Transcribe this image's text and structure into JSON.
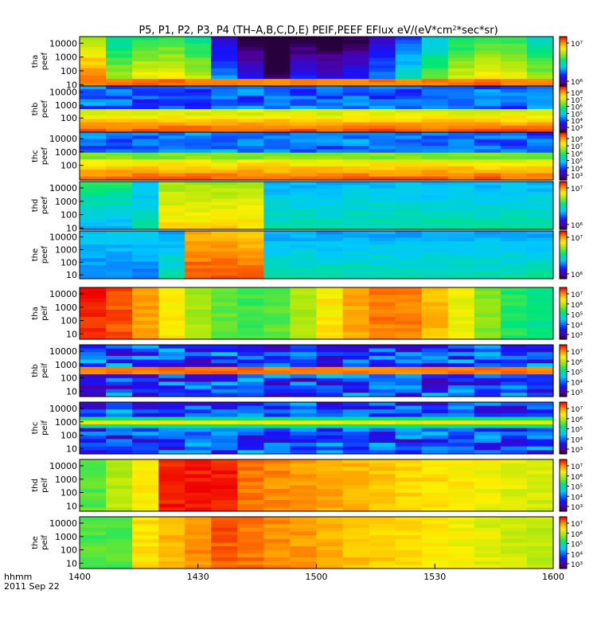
{
  "chart_data": {
    "type": "heatmap",
    "title_html": "P5, P1, P2, P3, P4 (TH–A,B,C,D,E) PEIF,PEEF EFlux eV/(eV*cm<tspan baseline-shift=\"super\" font-size=\"8\">2</tspan>*sec*sr)",
    "title": "P5, P1, P2, P3, P4 (TH–A,B,C,D,E) PEIF,PEEF EFlux eV/(eV*cm2*sec*sr)",
    "x_ticks": [
      "1400",
      "1430",
      "1500",
      "1530",
      "1600"
    ],
    "x_range": [
      "14:00",
      "16:00"
    ],
    "x_label": "hhmm",
    "date_label": "2011 Sep 22",
    "y_scale": "log",
    "colormap": "rainbow",
    "panels": [
      {
        "l1": "tha",
        "l2": "peef",
        "yticks": [
          "10000",
          "1000",
          "100",
          "10"
        ],
        "yrange": [
          8,
          30000
        ],
        "cticks": [
          "10⁷",
          "10⁶"
        ]
      },
      {
        "l1": "thb",
        "l2": "peef",
        "yticks": [
          "10000",
          "1000",
          "100"
        ],
        "yrange": [
          8,
          30000
        ],
        "cticks": [
          "10⁸",
          "10⁷",
          "10⁶",
          "10⁵",
          "10⁴",
          "10³"
        ]
      },
      {
        "l1": "thc",
        "l2": "peef",
        "yticks": [
          "10000",
          "1000",
          "100"
        ],
        "yrange": [
          8,
          30000
        ],
        "cticks": [
          "10⁸",
          "10⁷",
          "10⁶",
          "10⁵",
          "10⁴",
          "10³"
        ]
      },
      {
        "l1": "thd",
        "l2": "peef",
        "yticks": [
          "10000",
          "1000",
          "100",
          "10"
        ],
        "yrange": [
          8,
          30000
        ],
        "cticks": [
          "10⁷",
          "10⁶"
        ]
      },
      {
        "l1": "the",
        "l2": "peef",
        "yticks": [
          "10000",
          "1000",
          "100",
          "10"
        ],
        "yrange": [
          5,
          30000
        ],
        "cticks": [
          "10⁷",
          "10⁶"
        ]
      },
      {
        "l1": "tha",
        "l2": "peif",
        "yticks": [
          "10000",
          "1000",
          "100",
          "10"
        ],
        "yrange": [
          4,
          30000
        ],
        "cticks": [
          "10⁷",
          "10⁶",
          "10⁵",
          "10⁴",
          "10³"
        ]
      },
      {
        "l1": "thb",
        "l2": "peif",
        "yticks": [
          "10000",
          "1000",
          "100",
          "10"
        ],
        "yrange": [
          4,
          30000
        ],
        "cticks": [
          "10⁷",
          "10⁶",
          "10⁵",
          "10⁴",
          "10³"
        ]
      },
      {
        "l1": "thc",
        "l2": "peif",
        "yticks": [
          "10000",
          "1000",
          "100",
          "10"
        ],
        "yrange": [
          4,
          30000
        ],
        "cticks": [
          "10⁷",
          "10⁶",
          "10⁵",
          "10⁴",
          "10³"
        ]
      },
      {
        "l1": "thd",
        "l2": "peif",
        "yticks": [
          "10000",
          "1000",
          "100",
          "10"
        ],
        "yrange": [
          4,
          30000
        ],
        "cticks": [
          "10⁷",
          "10⁶",
          "10⁵",
          "10⁴",
          "10³"
        ]
      },
      {
        "l1": "the",
        "l2": "peif",
        "yticks": [
          "10000",
          "1000",
          "100",
          "10"
        ],
        "yrange": [
          4,
          30000
        ],
        "cticks": [
          "10⁷",
          "10⁶",
          "10⁵",
          "10⁴",
          "10³"
        ]
      }
    ]
  }
}
